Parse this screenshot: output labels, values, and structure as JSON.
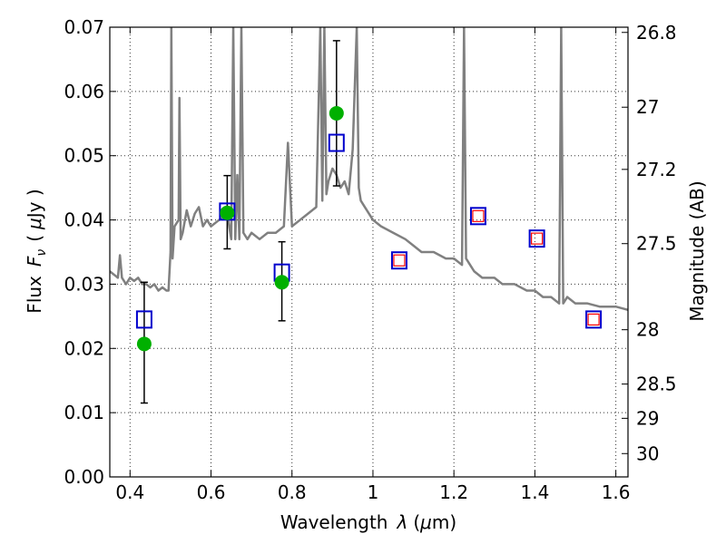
{
  "chart_data": {
    "type": "scatter",
    "xlabel_text": "Wavelength",
    "xlabel_symbol": "λ",
    "xlabel_unit_pre": "(",
    "xlabel_unit_mu": "μ",
    "xlabel_unit_post": "m)",
    "ylabel_text": "Flux",
    "ylabel_symbol_main": "F",
    "ylabel_symbol_sub": "ν",
    "ylabel_unit_open": "(",
    "ylabel_unit_mu": "μ",
    "ylabel_unit_close": "Jy )",
    "y2label": "Magnitude (AB)",
    "xlim": [
      0.35,
      1.63
    ],
    "ylim": [
      0.0,
      0.07
    ],
    "x_ticks": [
      "0.4",
      "0.6",
      "0.8",
      "1",
      "1.2",
      "1.4",
      "1.6"
    ],
    "x_tick_values": [
      0.4,
      0.6,
      0.8,
      1.0,
      1.2,
      1.4,
      1.6
    ],
    "y_ticks": [
      "0.00",
      "0.01",
      "0.02",
      "0.03",
      "0.04",
      "0.05",
      "0.06",
      "0.07"
    ],
    "y_tick_values": [
      0.0,
      0.01,
      0.02,
      0.03,
      0.04,
      0.05,
      0.06,
      0.07
    ],
    "y2_ticks": [
      "26.8",
      "27",
      "27.2",
      "27.5",
      "28",
      "28.5",
      "29",
      "30"
    ],
    "y2_tick_mags": [
      26.8,
      27.0,
      27.2,
      27.5,
      28.0,
      28.5,
      29.0,
      30.0
    ],
    "grid": true,
    "colors": {
      "spectrum": "#808080",
      "observed": "#00b000",
      "model_box": "#0000cc",
      "model_inner": "#ff0000",
      "errorbar": "#000000"
    },
    "series": [
      {
        "name": "spectrum",
        "x": [
          0.35,
          0.37,
          0.375,
          0.38,
          0.39,
          0.4,
          0.41,
          0.42,
          0.43,
          0.44,
          0.45,
          0.46,
          0.47,
          0.48,
          0.49,
          0.495,
          0.5,
          0.502,
          0.505,
          0.51,
          0.52,
          0.522,
          0.525,
          0.53,
          0.54,
          0.55,
          0.56,
          0.57,
          0.58,
          0.59,
          0.6,
          0.62,
          0.64,
          0.65,
          0.655,
          0.66,
          0.665,
          0.67,
          0.675,
          0.68,
          0.69,
          0.7,
          0.72,
          0.74,
          0.76,
          0.78,
          0.79,
          0.8,
          0.82,
          0.84,
          0.86,
          0.87,
          0.875,
          0.88,
          0.885,
          0.89,
          0.9,
          0.91,
          0.92,
          0.93,
          0.94,
          0.95,
          0.96,
          0.965,
          0.97,
          0.98,
          1.0,
          1.02,
          1.05,
          1.08,
          1.1,
          1.12,
          1.15,
          1.18,
          1.2,
          1.22,
          1.225,
          1.23,
          1.24,
          1.25,
          1.27,
          1.3,
          1.32,
          1.35,
          1.38,
          1.4,
          1.42,
          1.44,
          1.46,
          1.465,
          1.47,
          1.48,
          1.5,
          1.53,
          1.56,
          1.6,
          1.63
        ],
        "y": [
          0.032,
          0.031,
          0.0345,
          0.031,
          0.03,
          0.031,
          0.0305,
          0.031,
          0.03,
          0.03,
          0.0295,
          0.03,
          0.029,
          0.0295,
          0.029,
          0.029,
          0.035,
          0.07,
          0.034,
          0.039,
          0.04,
          0.059,
          0.037,
          0.038,
          0.0415,
          0.039,
          0.041,
          0.042,
          0.039,
          0.04,
          0.039,
          0.04,
          0.041,
          0.037,
          0.07,
          0.037,
          0.047,
          0.037,
          0.07,
          0.038,
          0.037,
          0.038,
          0.037,
          0.038,
          0.038,
          0.039,
          0.052,
          0.039,
          0.04,
          0.041,
          0.042,
          0.07,
          0.043,
          0.07,
          0.044,
          0.046,
          0.048,
          0.047,
          0.045,
          0.046,
          0.044,
          0.051,
          0.07,
          0.045,
          0.043,
          0.042,
          0.04,
          0.039,
          0.038,
          0.037,
          0.036,
          0.035,
          0.035,
          0.034,
          0.034,
          0.033,
          0.07,
          0.034,
          0.033,
          0.032,
          0.031,
          0.031,
          0.03,
          0.03,
          0.029,
          0.029,
          0.028,
          0.028,
          0.027,
          0.07,
          0.027,
          0.028,
          0.027,
          0.027,
          0.0265,
          0.0265,
          0.026
        ]
      },
      {
        "name": "observed",
        "x": [
          0.435,
          0.64,
          0.775,
          0.91
        ],
        "y": [
          0.0207,
          0.0411,
          0.0303,
          0.0566
        ],
        "err_low": [
          0.0115,
          0.0355,
          0.0243,
          0.0453
        ],
        "err_high": [
          0.0303,
          0.0469,
          0.0366,
          0.0679
        ]
      },
      {
        "name": "model",
        "x": [
          0.435,
          0.64,
          0.775,
          0.91,
          1.065,
          1.26,
          1.405,
          1.545
        ],
        "y": [
          0.0245,
          0.0413,
          0.0318,
          0.052,
          0.0337,
          0.0406,
          0.0371,
          0.0245
        ],
        "inner": [
          false,
          false,
          false,
          false,
          true,
          true,
          true,
          true
        ]
      }
    ]
  }
}
